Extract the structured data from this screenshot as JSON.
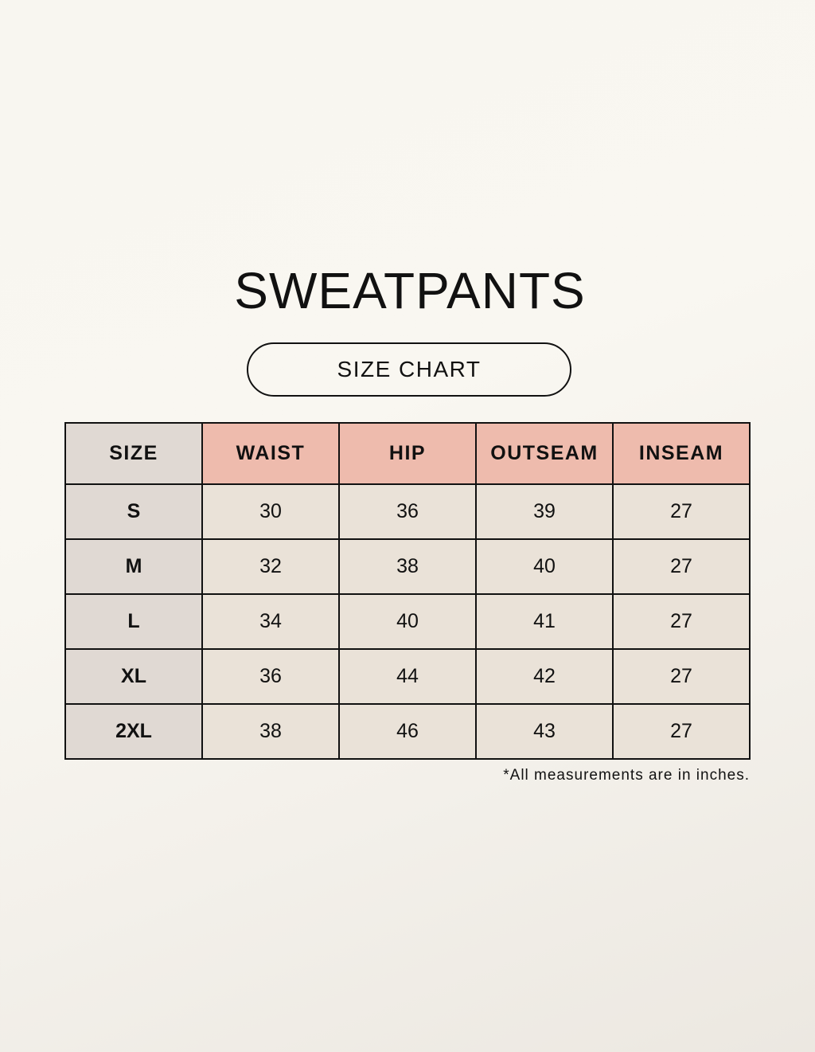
{
  "title": "SWEATPANTS",
  "subtitle": "SIZE CHART",
  "table": {
    "headers": [
      "SIZE",
      "WAIST",
      "HIP",
      "OUTSEAM",
      "INSEAM"
    ],
    "rows": [
      [
        "S",
        "30",
        "36",
        "39",
        "27"
      ],
      [
        "M",
        "32",
        "38",
        "40",
        "27"
      ],
      [
        "L",
        "34",
        "40",
        "41",
        "27"
      ],
      [
        "XL",
        "36",
        "44",
        "42",
        "27"
      ],
      [
        "2XL",
        "38",
        "46",
        "43",
        "27"
      ]
    ]
  },
  "note": "*All measurements are in inches.",
  "colors": {
    "header_accent": "#eebbad",
    "size_column": "#e0d9d3",
    "cell": "#eae2d8"
  }
}
